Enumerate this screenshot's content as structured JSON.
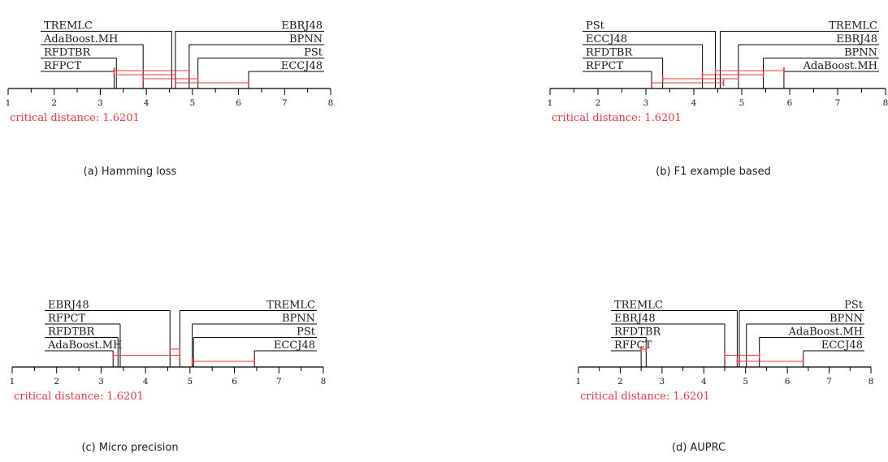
{
  "chart_data": [
    {
      "type": "critical-difference",
      "caption": "(a) Hamming loss",
      "axis": {
        "min": 1,
        "max": 8,
        "ticks": [
          "1",
          "2",
          "3",
          "4",
          "5",
          "6",
          "7",
          "8"
        ]
      },
      "critical_distance_label": "critical distance: 1.6201",
      "critical_distance": 1.6201,
      "left_methods": [
        {
          "name": "TREMLC",
          "rank": 4.55
        },
        {
          "name": "AdaBoost.MH",
          "rank": 3.93
        },
        {
          "name": "RFDTBR",
          "rank": 3.35
        },
        {
          "name": "RFPCT",
          "rank": 3.3
        }
      ],
      "right_methods": [
        {
          "name": "EBRJ48",
          "rank": 4.63
        },
        {
          "name": "BPNN",
          "rank": 4.93
        },
        {
          "name": "PSt",
          "rank": 5.12
        },
        {
          "name": "ECCJ48",
          "rank": 6.22
        }
      ],
      "cd_bars": [
        {
          "from": 3.3,
          "to": 4.93
        },
        {
          "from": 3.35,
          "to": 4.63
        },
        {
          "from": 3.93,
          "to": 5.12
        },
        {
          "from": 4.63,
          "to": 6.22
        }
      ]
    },
    {
      "type": "critical-difference",
      "caption": "(b) F1 example based",
      "axis": {
        "min": 1,
        "max": 8,
        "ticks": [
          "1",
          "2",
          "3",
          "4",
          "5",
          "6",
          "7",
          "8"
        ]
      },
      "critical_distance_label": "critical distance: 1.6201",
      "critical_distance": 1.6201,
      "left_methods": [
        {
          "name": "PSt",
          "rank": 4.45
        },
        {
          "name": "ECCJ48",
          "rank": 4.18
        },
        {
          "name": "RFDTBR",
          "rank": 3.35
        },
        {
          "name": "RFPCT",
          "rank": 3.12
        }
      ],
      "right_methods": [
        {
          "name": "TREMLC",
          "rank": 4.55
        },
        {
          "name": "EBRJ48",
          "rank": 4.93
        },
        {
          "name": "BPNN",
          "rank": 5.45
        },
        {
          "name": "AdaBoost.MH",
          "rank": 5.88
        }
      ],
      "cd_bars": [
        {
          "from": 4.45,
          "to": 5.88
        },
        {
          "from": 4.18,
          "to": 5.45
        },
        {
          "from": 3.35,
          "to": 4.93
        },
        {
          "from": 3.12,
          "to": 4.62
        }
      ]
    },
    {
      "type": "critical-difference",
      "caption": "(c) Micro precision",
      "axis": {
        "min": 1,
        "max": 8,
        "ticks": [
          "1",
          "2",
          "3",
          "4",
          "5",
          "6",
          "7",
          "8"
        ]
      },
      "critical_distance_label": "critical distance: 1.6201",
      "critical_distance": 1.6201,
      "left_methods": [
        {
          "name": "EBRJ48",
          "rank": 4.55
        },
        {
          "name": "RFPCT",
          "rank": 3.43
        },
        {
          "name": "RFDTBR",
          "rank": 3.38
        },
        {
          "name": "AdaBoost.MH",
          "rank": 3.27
        }
      ],
      "right_methods": [
        {
          "name": "TREMLC",
          "rank": 4.77
        },
        {
          "name": "BPNN",
          "rank": 5.05
        },
        {
          "name": "PSt",
          "rank": 5.08
        },
        {
          "name": "ECCJ48",
          "rank": 6.45
        }
      ],
      "cd_bars": [
        {
          "from": 4.55,
          "to": 4.77
        },
        {
          "from": 3.27,
          "to": 4.77
        },
        {
          "from": 5.05,
          "to": 6.45
        }
      ]
    },
    {
      "type": "critical-difference",
      "caption": "(d) AUPRC",
      "axis": {
        "min": 1,
        "max": 8,
        "ticks": [
          "1",
          "2",
          "3",
          "4",
          "5",
          "6",
          "7",
          "8"
        ]
      },
      "critical_distance_label": "critical distance: 1.6201",
      "critical_distance": 1.6201,
      "left_methods": [
        {
          "name": "TREMLC",
          "rank": 4.8
        },
        {
          "name": "EBRJ48",
          "rank": 4.5
        },
        {
          "name": "RFDTBR",
          "rank": 2.62
        },
        {
          "name": "RFPCT",
          "rank": 2.5
        }
      ],
      "right_methods": [
        {
          "name": "PSt",
          "rank": 4.85
        },
        {
          "name": "BPNN",
          "rank": 5.02
        },
        {
          "name": "AdaBoost.MH",
          "rank": 5.33
        },
        {
          "name": "ECCJ48",
          "rank": 6.38
        }
      ],
      "cd_bars": [
        {
          "from": 2.5,
          "to": 2.62
        },
        {
          "from": 4.5,
          "to": 5.33
        },
        {
          "from": 4.8,
          "to": 6.38
        }
      ]
    }
  ]
}
